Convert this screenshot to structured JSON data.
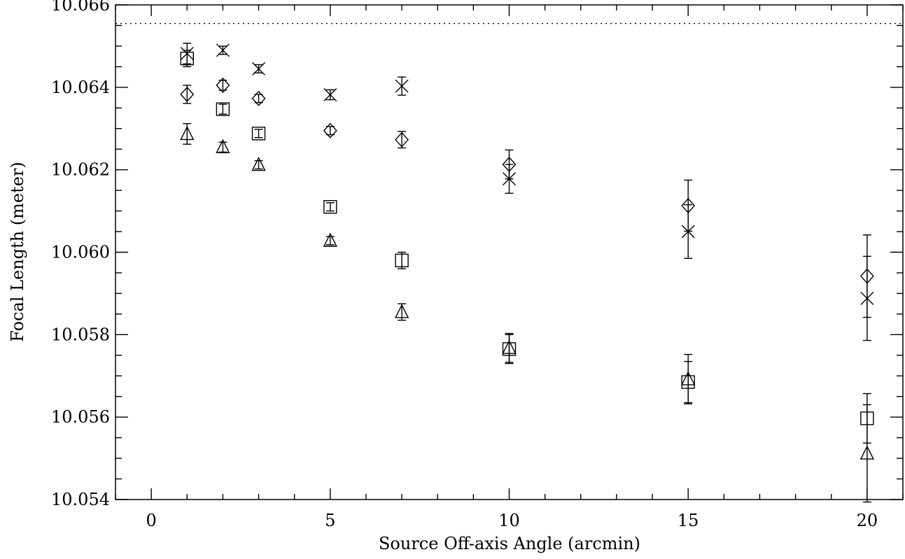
{
  "chart_data": {
    "type": "scatter",
    "title": "",
    "xlabel": "Source Off-axis Angle (arcmin)",
    "ylabel": "Focal Length (meter)",
    "xlim": [
      -1,
      21
    ],
    "ylim": [
      10.054,
      10.066
    ],
    "x_ticks": [
      0,
      5,
      10,
      15,
      20
    ],
    "x_tick_labels": [
      "0",
      "5",
      "10",
      "15",
      "20"
    ],
    "y_ticks": [
      10.054,
      10.056,
      10.058,
      10.06,
      10.062,
      10.064,
      10.066
    ],
    "y_tick_labels": [
      "10.054",
      "10.056",
      "10.058",
      "10.060",
      "10.062",
      "10.064",
      "10.066"
    ],
    "x_minor_step": 1,
    "y_minor_step": 0.0005,
    "reference_line": {
      "y": 10.06555,
      "style": "dotted"
    },
    "grid": false,
    "legend": "none",
    "series": [
      {
        "marker": "x",
        "points": [
          {
            "x": 1,
            "y": 10.06482,
            "err": 0.00025
          },
          {
            "x": 2,
            "y": 10.0649,
            "err": 0.0001
          },
          {
            "x": 3,
            "y": 10.06445,
            "err": 0.0001
          },
          {
            "x": 5,
            "y": 10.06382,
            "err": 0.00012
          },
          {
            "x": 7,
            "y": 10.06403,
            "err": 0.00022
          },
          {
            "x": 10,
            "y": 10.06178,
            "err": 0.00035
          },
          {
            "x": 15,
            "y": 10.0605,
            "err": 0.00065
          },
          {
            "x": 20,
            "y": 10.05888,
            "err": 0.00102
          }
        ]
      },
      {
        "marker": "square",
        "points": [
          {
            "x": 1,
            "y": 10.0647,
            "err": 0.0002
          },
          {
            "x": 2,
            "y": 10.06347,
            "err": 0.00012
          },
          {
            "x": 3,
            "y": 10.06288,
            "err": 0.0001
          },
          {
            "x": 5,
            "y": 10.0611,
            "err": 0.0001
          },
          {
            "x": 7,
            "y": 10.0598,
            "err": 0.0002
          },
          {
            "x": 10,
            "y": 10.05765,
            "err": 0.00035
          },
          {
            "x": 15,
            "y": 10.05685,
            "err": 0.0005
          },
          {
            "x": 20,
            "y": 10.05597,
            "err": 0.0006
          }
        ]
      },
      {
        "marker": "diamond",
        "points": [
          {
            "x": 1,
            "y": 10.06383,
            "err": 0.00022
          },
          {
            "x": 2,
            "y": 10.06405,
            "err": 0.00012
          },
          {
            "x": 3,
            "y": 10.06373,
            "err": 0.0001
          },
          {
            "x": 5,
            "y": 10.06295,
            "err": 0.0001
          },
          {
            "x": 7,
            "y": 10.06273,
            "err": 0.0002
          },
          {
            "x": 10,
            "y": 10.06213,
            "err": 0.00035
          },
          {
            "x": 15,
            "y": 10.06113,
            "err": 0.00062
          },
          {
            "x": 20,
            "y": 10.05942,
            "err": 0.001
          }
        ]
      },
      {
        "marker": "triangle",
        "points": [
          {
            "x": 1,
            "y": 10.06287,
            "err": 0.00025
          },
          {
            "x": 2,
            "y": 10.06255,
            "err": 0.00012
          },
          {
            "x": 3,
            "y": 10.06212,
            "err": 0.0001
          },
          {
            "x": 5,
            "y": 10.06028,
            "err": 0.0001
          },
          {
            "x": 7,
            "y": 10.05855,
            "err": 0.0002
          },
          {
            "x": 10,
            "y": 10.05768,
            "err": 0.00035
          },
          {
            "x": 15,
            "y": 10.05692,
            "err": 0.0006
          },
          {
            "x": 20,
            "y": 10.05512,
            "err": 0.00118
          }
        ]
      }
    ]
  }
}
